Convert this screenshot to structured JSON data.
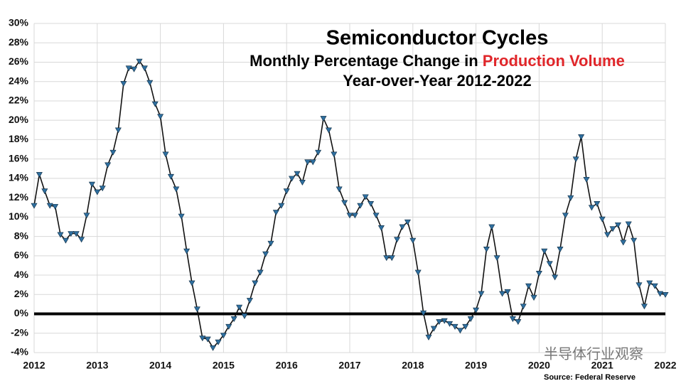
{
  "chart_data": {
    "type": "line",
    "title": "Semiconductor Cycles",
    "subtitle_prefix": "Monthly Percentage Change in ",
    "subtitle_highlight": "Production Volume",
    "subtitle_line2": "Year-over-Year 2012-2022",
    "source": "Source: Federal Reserve",
    "watermark": "半导体行业观察",
    "xlim": [
      2012,
      2022
    ],
    "xticks": [
      2012,
      2013,
      2014,
      2015,
      2016,
      2017,
      2018,
      2019,
      2020,
      2021,
      2022
    ],
    "ylim": [
      -4,
      30
    ],
    "yticks": [
      {
        "value": -4,
        "label": "-4%"
      },
      {
        "value": -2,
        "label": "-2%"
      },
      {
        "value": 0,
        "label": "0%"
      },
      {
        "value": 2,
        "label": "2%"
      },
      {
        "value": 4,
        "label": "4%"
      },
      {
        "value": 6,
        "label": "6%"
      },
      {
        "value": 8,
        "label": "8%"
      },
      {
        "value": 10,
        "label": "10%"
      },
      {
        "value": 12,
        "label": "12%"
      },
      {
        "value": 14,
        "label": "14%"
      },
      {
        "value": 16,
        "label": "16%"
      },
      {
        "value": 18,
        "label": "18%"
      },
      {
        "value": 20,
        "label": "20%"
      },
      {
        "value": 22,
        "label": "22%"
      },
      {
        "value": 24,
        "label": "24%"
      },
      {
        "value": 26,
        "label": "26%"
      },
      {
        "value": 28,
        "label": "28%"
      },
      {
        "value": 30,
        "label": "30%"
      }
    ],
    "grid": true,
    "reference_line": 0,
    "highlight_color": "#e0262a",
    "x": [
      2012,
      2012.083,
      2012.167,
      2012.25,
      2012.333,
      2012.417,
      2012.5,
      2012.583,
      2012.667,
      2012.75,
      2012.833,
      2012.917,
      2013,
      2013.083,
      2013.167,
      2013.25,
      2013.333,
      2013.417,
      2013.5,
      2013.583,
      2013.667,
      2013.75,
      2013.833,
      2013.917,
      2014,
      2014.083,
      2014.167,
      2014.25,
      2014.333,
      2014.417,
      2014.5,
      2014.583,
      2014.667,
      2014.75,
      2014.833,
      2014.917,
      2015,
      2015.083,
      2015.167,
      2015.25,
      2015.333,
      2015.417,
      2015.5,
      2015.583,
      2015.667,
      2015.75,
      2015.833,
      2015.917,
      2016,
      2016.083,
      2016.167,
      2016.25,
      2016.333,
      2016.417,
      2016.5,
      2016.583,
      2016.667,
      2016.75,
      2016.833,
      2016.917,
      2017,
      2017.083,
      2017.167,
      2017.25,
      2017.333,
      2017.417,
      2017.5,
      2017.583,
      2017.667,
      2017.75,
      2017.833,
      2017.917,
      2018,
      2018.083,
      2018.167,
      2018.25,
      2018.333,
      2018.417,
      2018.5,
      2018.583,
      2018.667,
      2018.75,
      2018.833,
      2018.917,
      2019,
      2019.083,
      2019.167,
      2019.25,
      2019.333,
      2019.417,
      2019.5,
      2019.583,
      2019.667,
      2019.75,
      2019.833,
      2019.917,
      2020,
      2020.083,
      2020.167,
      2020.25,
      2020.333,
      2020.417,
      2020.5,
      2020.583,
      2020.667,
      2020.75,
      2020.833,
      2020.917,
      2021,
      2021.083,
      2021.167,
      2021.25,
      2021.333,
      2021.417,
      2021.5,
      2021.583,
      2021.667,
      2021.75,
      2021.833,
      2021.917,
      2022
    ],
    "series": [
      {
        "color": "#111111",
        "marker_color": "#2f6f9f",
        "values": [
          11.2,
          14.4,
          12.7,
          11.2,
          11.1,
          8.2,
          7.6,
          8.3,
          8.3,
          7.7,
          10.2,
          13.4,
          12.6,
          13.0,
          15.4,
          16.7,
          19.0,
          23.8,
          25.4,
          25.3,
          26.1,
          25.4,
          23.9,
          21.7,
          20.4,
          16.5,
          14.2,
          12.9,
          10.1,
          6.5,
          3.2,
          0.5,
          -2.5,
          -2.6,
          -3.5,
          -2.9,
          -2.2,
          -1.3,
          -0.5,
          0.7,
          -0.2,
          1.4,
          3.2,
          4.3,
          6.2,
          7.3,
          10.5,
          11.2,
          12.7,
          14.0,
          14.5,
          13.6,
          15.7,
          15.7,
          16.7,
          20.2,
          19.0,
          16.5,
          12.9,
          11.5,
          10.2,
          10.2,
          11.2,
          12.1,
          11.4,
          10.2,
          8.9,
          5.8,
          5.8,
          7.7,
          9.0,
          9.5,
          7.6,
          4.3,
          0.1,
          -2.4,
          -1.5,
          -0.8,
          -0.7,
          -1.0,
          -1.3,
          -1.7,
          -1.3,
          -0.5,
          0.4,
          2.1,
          6.7,
          9.0,
          5.8,
          2.1,
          2.3,
          -0.5,
          -0.8,
          0.8,
          2.9,
          1.7,
          4.2,
          6.5,
          5.2,
          3.8,
          6.7,
          10.2,
          12.0,
          16.0,
          18.3,
          13.9,
          11.0,
          11.4,
          9.8,
          8.2,
          8.8,
          9.2,
          7.4,
          9.3,
          7.6,
          3.0,
          0.8,
          3.2,
          2.9,
          2.1,
          2.0
        ]
      }
    ]
  }
}
